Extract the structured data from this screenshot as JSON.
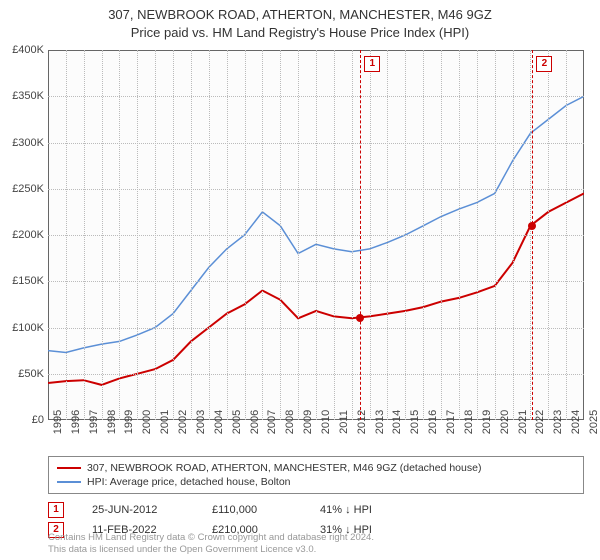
{
  "title_line1": "307, NEWBROOK ROAD, ATHERTON, MANCHESTER, M46 9GZ",
  "title_line2": "Price paid vs. HM Land Registry's House Price Index (HPI)",
  "chart": {
    "type": "line",
    "background_color": "#fcfcfc",
    "border_color": "#666666",
    "grid_color": "#bbbbbb",
    "ylim": [
      0,
      400000
    ],
    "ytick_step": 50000,
    "yticks": [
      "£0",
      "£50K",
      "£100K",
      "£150K",
      "£200K",
      "£250K",
      "£300K",
      "£350K",
      "£400K"
    ],
    "xlim": [
      1995,
      2025
    ],
    "xticks": [
      1995,
      1996,
      1997,
      1998,
      1999,
      2000,
      2001,
      2002,
      2003,
      2004,
      2005,
      2006,
      2007,
      2008,
      2009,
      2010,
      2011,
      2012,
      2013,
      2014,
      2015,
      2016,
      2017,
      2018,
      2019,
      2020,
      2021,
      2022,
      2023,
      2024,
      2025
    ],
    "series_property": {
      "color": "#cc0000",
      "width": 2,
      "points": [
        [
          1995,
          40000
        ],
        [
          1996,
          42000
        ],
        [
          1997,
          43000
        ],
        [
          1998,
          38000
        ],
        [
          1999,
          45000
        ],
        [
          2000,
          50000
        ],
        [
          2001,
          55000
        ],
        [
          2002,
          65000
        ],
        [
          2003,
          85000
        ],
        [
          2004,
          100000
        ],
        [
          2005,
          115000
        ],
        [
          2006,
          125000
        ],
        [
          2007,
          140000
        ],
        [
          2008,
          130000
        ],
        [
          2009,
          110000
        ],
        [
          2010,
          118000
        ],
        [
          2011,
          112000
        ],
        [
          2012,
          110000
        ],
        [
          2013,
          112000
        ],
        [
          2014,
          115000
        ],
        [
          2015,
          118000
        ],
        [
          2016,
          122000
        ],
        [
          2017,
          128000
        ],
        [
          2018,
          132000
        ],
        [
          2019,
          138000
        ],
        [
          2020,
          145000
        ],
        [
          2021,
          170000
        ],
        [
          2022,
          210000
        ],
        [
          2023,
          225000
        ],
        [
          2024,
          235000
        ],
        [
          2025,
          245000
        ]
      ]
    },
    "series_hpi": {
      "color": "#5b8fd6",
      "width": 1.5,
      "points": [
        [
          1995,
          75000
        ],
        [
          1996,
          73000
        ],
        [
          1997,
          78000
        ],
        [
          1998,
          82000
        ],
        [
          1999,
          85000
        ],
        [
          2000,
          92000
        ],
        [
          2001,
          100000
        ],
        [
          2002,
          115000
        ],
        [
          2003,
          140000
        ],
        [
          2004,
          165000
        ],
        [
          2005,
          185000
        ],
        [
          2006,
          200000
        ],
        [
          2007,
          225000
        ],
        [
          2008,
          210000
        ],
        [
          2009,
          180000
        ],
        [
          2010,
          190000
        ],
        [
          2011,
          185000
        ],
        [
          2012,
          182000
        ],
        [
          2013,
          185000
        ],
        [
          2014,
          192000
        ],
        [
          2015,
          200000
        ],
        [
          2016,
          210000
        ],
        [
          2017,
          220000
        ],
        [
          2018,
          228000
        ],
        [
          2019,
          235000
        ],
        [
          2020,
          245000
        ],
        [
          2021,
          280000
        ],
        [
          2022,
          310000
        ],
        [
          2023,
          325000
        ],
        [
          2024,
          340000
        ],
        [
          2025,
          350000
        ]
      ]
    },
    "markers": [
      {
        "n": "1",
        "x": 2012.48,
        "y": 110000,
        "color": "#cc0000"
      },
      {
        "n": "2",
        "x": 2022.11,
        "y": 210000,
        "color": "#cc0000"
      }
    ]
  },
  "legend": {
    "row1": {
      "color": "#cc0000",
      "label": "307, NEWBROOK ROAD, ATHERTON, MANCHESTER, M46 9GZ (detached house)"
    },
    "row2": {
      "color": "#5b8fd6",
      "label": "HPI: Average price, detached house, Bolton"
    }
  },
  "transactions": [
    {
      "n": "1",
      "color": "#cc0000",
      "date": "25-JUN-2012",
      "price": "£110,000",
      "delta": "41% ↓ HPI"
    },
    {
      "n": "2",
      "color": "#cc0000",
      "date": "11-FEB-2022",
      "price": "£210,000",
      "delta": "31% ↓ HPI"
    }
  ],
  "footnote_line1": "Contains HM Land Registry data © Crown copyright and database right 2024.",
  "footnote_line2": "This data is licensed under the Open Government Licence v3.0."
}
